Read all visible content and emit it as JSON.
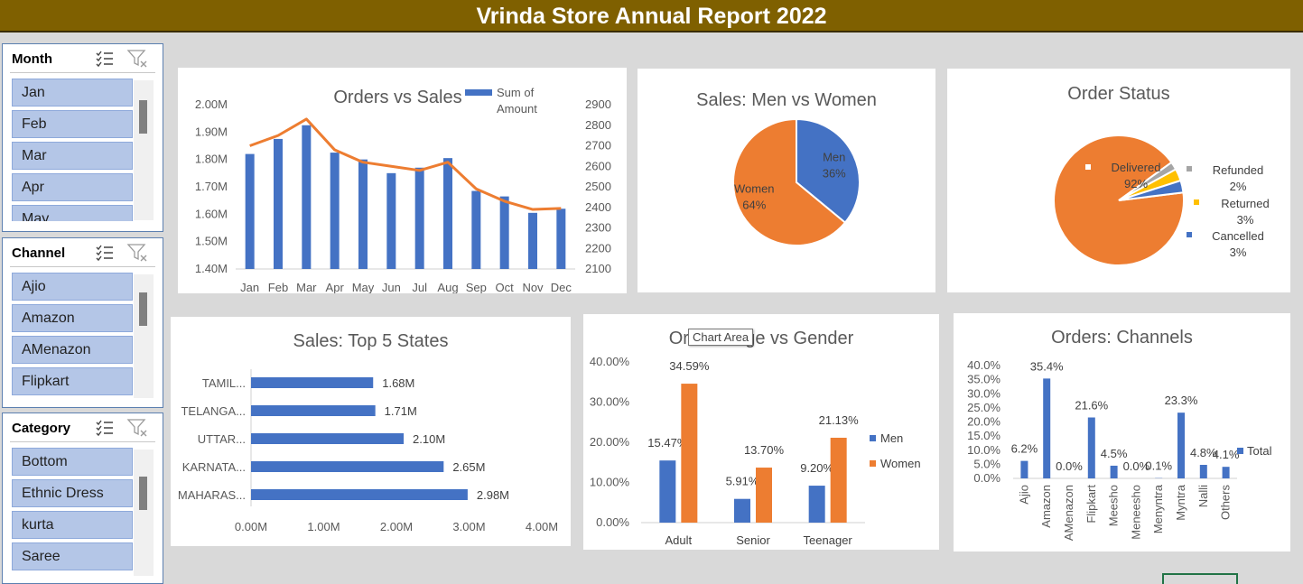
{
  "page_title": "Vrinda Store Annual Report 2022",
  "colors": {
    "blue": "#4472c4",
    "orange": "#ed7d31",
    "gray": "#a5a5a5",
    "yellow": "#ffc000",
    "title_bg": "#7f6000"
  },
  "slicers": [
    {
      "title": "Month",
      "items": [
        "Jan",
        "Feb",
        "Mar",
        "Apr",
        "May"
      ]
    },
    {
      "title": "Channel",
      "items": [
        "Ajio",
        "Amazon",
        "AMenazon",
        "Flipkart"
      ]
    },
    {
      "title": "Category",
      "items": [
        "Bottom",
        "Ethnic Dress",
        "kurta",
        "Saree"
      ]
    }
  ],
  "tooltip": "Chart Area",
  "chart_data": [
    {
      "id": "orders-vs-sales",
      "type": "bar-line-combo",
      "title": "Orders vs Sales",
      "legend": [
        "Sum of",
        "Amount"
      ],
      "categories": [
        "Jan",
        "Feb",
        "Mar",
        "Apr",
        "May",
        "Jun",
        "Jul",
        "Aug",
        "Sep",
        "Oct",
        "Nov",
        "Dec"
      ],
      "y_left_ticks": [
        "2.00M",
        "1.90M",
        "1.80M",
        "1.70M",
        "1.60M",
        "1.50M",
        "1.40M"
      ],
      "y_right_ticks": [
        "2900",
        "2800",
        "2700",
        "2600",
        "2500",
        "2400",
        "2300",
        "2200",
        "2100"
      ],
      "y_left_range": [
        1400000,
        2000000
      ],
      "y_right_range": [
        2100,
        2900
      ],
      "bars": [
        1820000,
        1875000,
        1925000,
        1825000,
        1800000,
        1750000,
        1770000,
        1805000,
        1685000,
        1665000,
        1605000,
        1620000
      ],
      "line": [
        2700,
        2750,
        2830,
        2680,
        2620,
        2600,
        2580,
        2620,
        2490,
        2430,
        2390,
        2395
      ]
    },
    {
      "id": "sales-men-women",
      "type": "pie",
      "title": "Sales: Men vs Women",
      "slices": [
        {
          "label": "Men",
          "pct": "36%",
          "value": 36
        },
        {
          "label": "Women",
          "pct": "64%",
          "value": 64
        }
      ]
    },
    {
      "id": "order-status",
      "type": "pie",
      "title": "Order Status",
      "slices": [
        {
          "label": "Delivered",
          "pct": "92%",
          "value": 92
        },
        {
          "label": "Refunded",
          "pct": "2%",
          "value": 2
        },
        {
          "label": "Returned",
          "pct": "3%",
          "value": 3
        },
        {
          "label": "Cancelled",
          "pct": "3%",
          "value": 3
        }
      ]
    },
    {
      "id": "top-5-states",
      "type": "bar",
      "title": "Sales: Top 5 States",
      "categories": [
        "TAMIL...",
        "TELANGA...",
        "UTTAR...",
        "KARNATA...",
        "MAHARAS..."
      ],
      "values": [
        1.68,
        1.71,
        2.1,
        2.65,
        2.98
      ],
      "value_labels": [
        "1.68M",
        "1.71M",
        "2.10M",
        "2.65M",
        "2.98M"
      ],
      "x_ticks": [
        "0.00M",
        "1.00M",
        "2.00M",
        "3.00M",
        "4.00M"
      ],
      "xlim": [
        0,
        4
      ]
    },
    {
      "id": "orders-age-gender",
      "type": "bar",
      "title": "Orders: Age vs Gender",
      "categories": [
        "Adult",
        "Senior",
        "Teenager"
      ],
      "y_ticks": [
        "40.00%",
        "30.00%",
        "20.00%",
        "10.00%",
        "0.00%"
      ],
      "ylim": [
        0,
        40
      ],
      "series": [
        {
          "name": "Men",
          "values": [
            15.47,
            5.91,
            9.2
          ],
          "labels": [
            "15.47%",
            "5.91%",
            "9.20%"
          ]
        },
        {
          "name": "Women",
          "values": [
            34.59,
            13.7,
            21.13
          ],
          "labels": [
            "34.59%",
            "13.70%",
            "21.13%"
          ]
        }
      ]
    },
    {
      "id": "orders-channels",
      "type": "bar",
      "title": "Orders: Channels",
      "categories": [
        "Ajio",
        "Amazon",
        "AMenazon",
        "Flipkart",
        "Meesho",
        "Meneesho",
        "Menyntra",
        "Myntra",
        "Nalli",
        "Others"
      ],
      "values": [
        6.2,
        35.4,
        0.0,
        21.6,
        4.5,
        0.0,
        0.1,
        23.3,
        4.8,
        4.1
      ],
      "value_labels": [
        "6.2%",
        "35.4%",
        "0.0%",
        "21.6%",
        "4.5%",
        "0.0%",
        "0.1%",
        "23.3%",
        "4.8%",
        "4.1%"
      ],
      "y_ticks": [
        "40.0%",
        "35.0%",
        "30.0%",
        "25.0%",
        "20.0%",
        "15.0%",
        "10.0%",
        "5.0%",
        "0.0%"
      ],
      "ylim": [
        0,
        40
      ],
      "legend": "Total"
    }
  ]
}
